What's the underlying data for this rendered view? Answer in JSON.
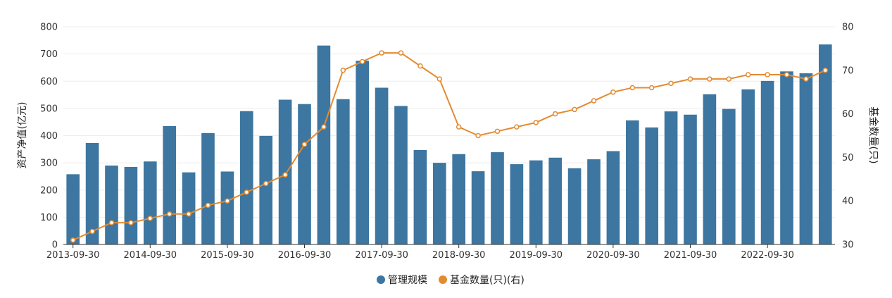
{
  "chart_data": {
    "type": "bar",
    "xlabel": "",
    "y_left": {
      "label": "资产净值(亿元)",
      "lim": [
        0,
        800
      ],
      "ticks": [
        0,
        100,
        200,
        300,
        400,
        500,
        600,
        700,
        800
      ]
    },
    "y_right": {
      "label": "基金数量(只)",
      "lim": [
        30,
        80
      ],
      "ticks": [
        30,
        40,
        50,
        60,
        70,
        80
      ]
    },
    "x_tick_labels": [
      "2013-09-30",
      "2014-09-30",
      "2015-09-30",
      "2016-09-30",
      "2017-09-30",
      "2018-09-30",
      "2019-09-30",
      "2020-09-30",
      "2021-09-30",
      "2022-09-30"
    ],
    "x_tick_every": 4,
    "grid": true,
    "legend_position": "bottom-center",
    "series": [
      {
        "name": "管理规模",
        "type": "bar",
        "axis": "left",
        "color": "#3d76a0",
        "values": [
          258,
          373,
          290,
          285,
          305,
          435,
          265,
          409,
          268,
          490,
          399,
          532,
          516,
          731,
          534,
          675,
          576,
          509,
          347,
          300,
          332,
          269,
          339,
          295,
          309,
          319,
          280,
          313,
          343,
          456,
          430,
          489,
          477,
          552,
          498,
          570,
          601,
          636,
          629,
          735
        ]
      },
      {
        "name": "基金数量(只)(右)",
        "type": "line",
        "axis": "right",
        "color": "#e38b30",
        "values": [
          31,
          33,
          35,
          35,
          36,
          37,
          37,
          39,
          40,
          42,
          44,
          46,
          53,
          57,
          70,
          72,
          74,
          74,
          71,
          68,
          57,
          55,
          56,
          57,
          58,
          60,
          61,
          63,
          65,
          66,
          66,
          67,
          68,
          68,
          68,
          69,
          69,
          69,
          68,
          70
        ]
      }
    ]
  }
}
